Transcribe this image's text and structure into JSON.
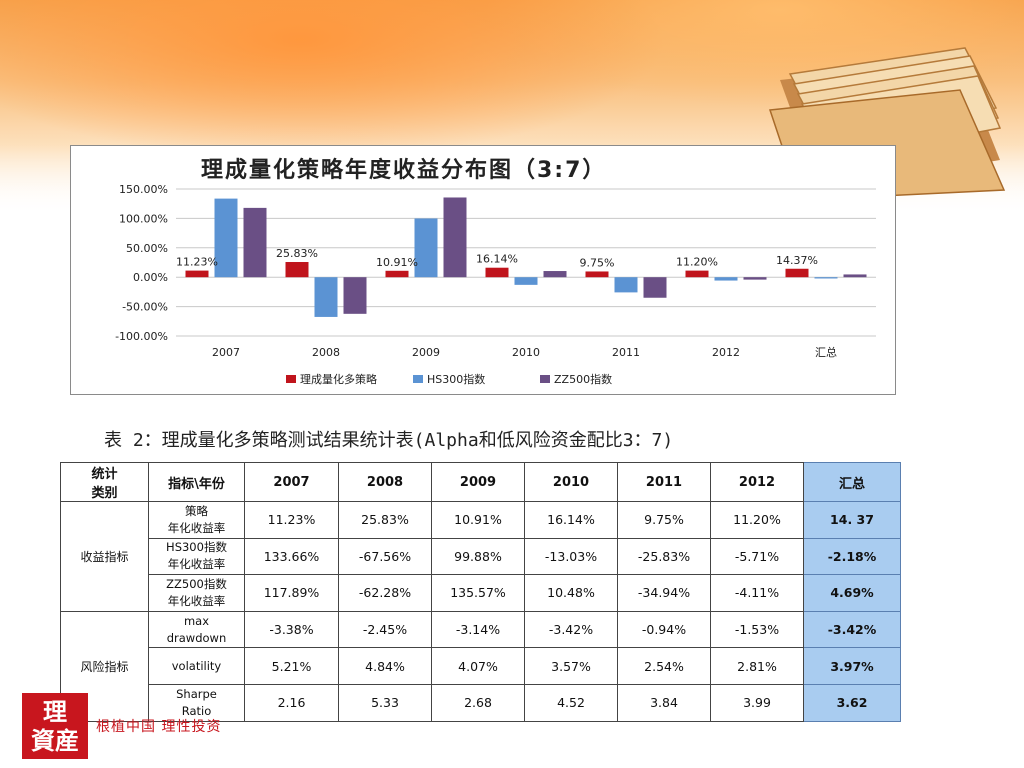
{
  "chart": {
    "title": "理成量化策略年度收益分布图（3:7）"
  },
  "chart_data": {
    "type": "bar",
    "categories": [
      "2007",
      "2008",
      "2009",
      "2010",
      "2011",
      "2012",
      "汇总"
    ],
    "series": [
      {
        "name": "理成量化多策略",
        "values": [
          11.23,
          25.83,
          10.91,
          16.14,
          9.75,
          11.2,
          14.37
        ],
        "color": "#c0141c"
      },
      {
        "name": "HS300指数",
        "values": [
          133.66,
          -67.56,
          99.88,
          -13.03,
          -25.83,
          -5.71,
          -2.18
        ],
        "color": "#5b93d3"
      },
      {
        "name": "ZZ500指数",
        "values": [
          117.89,
          -62.28,
          135.57,
          10.48,
          -34.94,
          -4.11,
          4.69
        ],
        "color": "#6a4f85"
      }
    ],
    "data_labels": [
      "11.23%",
      "25.83%",
      "10.91%",
      "16.14%",
      "9.75%",
      "11.20%",
      "14.37%"
    ],
    "y_ticks": [
      "150.00%",
      "100.00%",
      "50.00%",
      "0.00%",
      "-50.00%",
      "-100.00%"
    ],
    "ylim": [
      -100,
      150
    ],
    "legend_position": "bottom",
    "grid": true
  },
  "caption": "表 2：理成量化多策略测试结果统计表(Alpha和低风险资金配比3：7)",
  "table": {
    "corner": [
      "统计",
      "类别"
    ],
    "indicator_header": "指标\\年份",
    "years": [
      "2007",
      "2008",
      "2009",
      "2010",
      "2011",
      "2012"
    ],
    "summary_header": "汇总",
    "groups": [
      {
        "category": "收益指标",
        "rows": [
          {
            "indicator": [
              "策略",
              "年化收益率"
            ],
            "values": [
              "11.23%",
              "25.83%",
              "10.91%",
              "16.14%",
              "9.75%",
              "11.20%"
            ],
            "summary": "14. 37"
          },
          {
            "indicator": [
              "HS300指数",
              "年化收益率"
            ],
            "values": [
              "133.66%",
              "-67.56%",
              "99.88%",
              "-13.03%",
              "-25.83%",
              "-5.71%"
            ],
            "summary": "-2.18%"
          },
          {
            "indicator": [
              "ZZ500指数",
              "年化收益率"
            ],
            "values": [
              "117.89%",
              "-62.28%",
              "135.57%",
              "10.48%",
              "-34.94%",
              "-4.11%"
            ],
            "summary": "4.69%"
          }
        ]
      },
      {
        "category": "风险指标",
        "rows": [
          {
            "indicator": [
              "max",
              "drawdown"
            ],
            "values": [
              "-3.38%",
              "-2.45%",
              "-3.14%",
              "-3.42%",
              "-0.94%",
              "-1.53%"
            ],
            "summary": "-3.42%"
          },
          {
            "indicator": [
              "volatility",
              ""
            ],
            "values": [
              "5.21%",
              "4.84%",
              "4.07%",
              "3.57%",
              "2.54%",
              "2.81%"
            ],
            "summary": "3.97%"
          },
          {
            "indicator": [
              "Sharpe",
              "Ratio"
            ],
            "values": [
              "2.16",
              "5.33",
              "2.68",
              "4.52",
              "3.84",
              "3.99"
            ],
            "summary": "3.62"
          }
        ]
      }
    ]
  },
  "footer": {
    "logo": [
      "理",
      "資産"
    ],
    "slogan": "根植中国  理性投资"
  }
}
